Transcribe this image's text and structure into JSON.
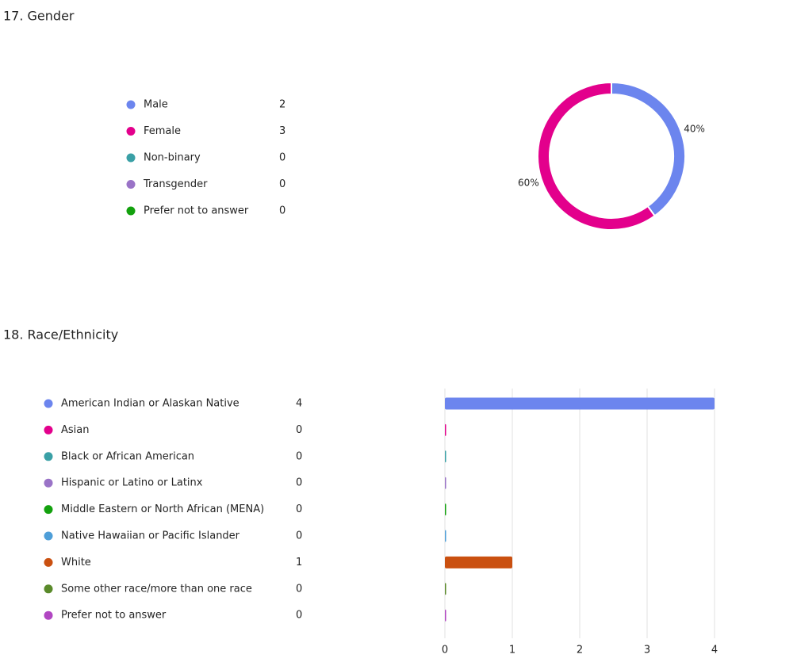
{
  "chart_data": [
    {
      "type": "donut",
      "title": "17. Gender",
      "categories": [
        "Male",
        "Female",
        "Non-binary",
        "Transgender",
        "Prefer not to answer"
      ],
      "values": [
        2,
        3,
        0,
        0,
        0
      ],
      "value_labels": [
        "40%",
        "60%",
        null,
        null,
        null
      ],
      "colors": [
        "#6c85ee",
        "#e3008c",
        "#3aa0a6",
        "#9a73c7",
        "#13a10e"
      ]
    },
    {
      "type": "hbar",
      "title": "18. Race/Ethnicity",
      "categories": [
        "American Indian or Alaskan Native",
        "Asian",
        "Black or African American",
        "Hispanic or Latino or Latinx",
        "Middle Eastern or North African (MENA)",
        "Native Hawaiian or Pacific Islander",
        "White",
        "Some other race/more than one race",
        "Prefer not to answer"
      ],
      "values": [
        4,
        0,
        0,
        0,
        0,
        0,
        1,
        0,
        0
      ],
      "colors": [
        "#6c85ee",
        "#e3008c",
        "#3aa0a6",
        "#9a73c7",
        "#13a10e",
        "#4e9ed8",
        "#ca5010",
        "#5a8a2a",
        "#b146c2"
      ],
      "xlim": [
        0,
        4
      ],
      "xticks": [
        0,
        1,
        2,
        3,
        4
      ],
      "grid": true
    }
  ]
}
